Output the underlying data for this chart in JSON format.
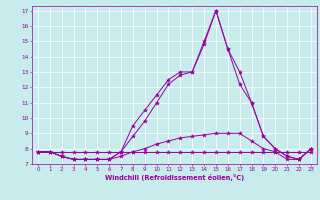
{
  "title": "",
  "xlabel": "Windchill (Refroidissement éolien,°C)",
  "background_color": "#c8ecec",
  "line_color": "#990099",
  "grid_color": "#ffffff",
  "xlim": [
    -0.5,
    23.5
  ],
  "ylim": [
    7,
    17.3
  ],
  "yticks": [
    7,
    8,
    9,
    10,
    11,
    12,
    13,
    14,
    15,
    16,
    17
  ],
  "xticks": [
    0,
    1,
    2,
    3,
    4,
    5,
    6,
    7,
    8,
    9,
    10,
    11,
    12,
    13,
    14,
    15,
    16,
    17,
    18,
    19,
    20,
    21,
    22,
    23
  ],
  "series": [
    {
      "x": [
        0,
        1,
        2,
        3,
        4,
        5,
        6,
        7,
        8,
        9,
        10,
        11,
        12,
        13,
        14,
        15,
        16,
        17,
        18,
        19,
        20,
        21,
        22,
        23
      ],
      "y": [
        7.8,
        7.8,
        7.8,
        7.8,
        7.8,
        7.8,
        7.8,
        7.8,
        7.8,
        7.8,
        7.8,
        7.8,
        7.8,
        7.8,
        7.8,
        7.8,
        7.8,
        7.8,
        7.8,
        7.8,
        7.8,
        7.8,
        7.8,
        7.8
      ]
    },
    {
      "x": [
        0,
        1,
        2,
        3,
        4,
        5,
        6,
        7,
        8,
        9,
        10,
        11,
        12,
        13,
        14,
        15,
        16,
        17,
        18,
        19,
        20,
        21,
        22,
        23
      ],
      "y": [
        7.8,
        7.8,
        7.5,
        7.3,
        7.3,
        7.3,
        7.3,
        7.5,
        7.8,
        8.0,
        8.3,
        8.5,
        8.7,
        8.8,
        8.9,
        9.0,
        9.0,
        9.0,
        8.5,
        8.0,
        7.8,
        7.3,
        7.3,
        8.0
      ]
    },
    {
      "x": [
        0,
        1,
        2,
        3,
        4,
        5,
        6,
        7,
        8,
        9,
        10,
        11,
        12,
        13,
        14,
        15,
        16,
        17,
        18,
        19,
        20,
        21,
        22,
        23
      ],
      "y": [
        7.8,
        7.8,
        7.5,
        7.3,
        7.3,
        7.3,
        7.3,
        7.8,
        8.8,
        9.8,
        11.0,
        12.2,
        12.8,
        13.0,
        14.8,
        17.0,
        14.5,
        12.2,
        11.0,
        8.8,
        8.0,
        7.5,
        7.3,
        8.0
      ]
    },
    {
      "x": [
        0,
        1,
        2,
        3,
        4,
        5,
        6,
        7,
        8,
        9,
        10,
        11,
        12,
        13,
        14,
        15,
        16,
        17,
        18,
        19,
        20,
        21,
        22,
        23
      ],
      "y": [
        7.8,
        7.8,
        7.5,
        7.3,
        7.3,
        7.3,
        7.3,
        7.8,
        9.5,
        10.5,
        11.5,
        12.5,
        13.0,
        13.0,
        15.0,
        17.0,
        14.5,
        13.0,
        11.0,
        8.8,
        8.0,
        7.5,
        7.3,
        8.0
      ]
    }
  ]
}
